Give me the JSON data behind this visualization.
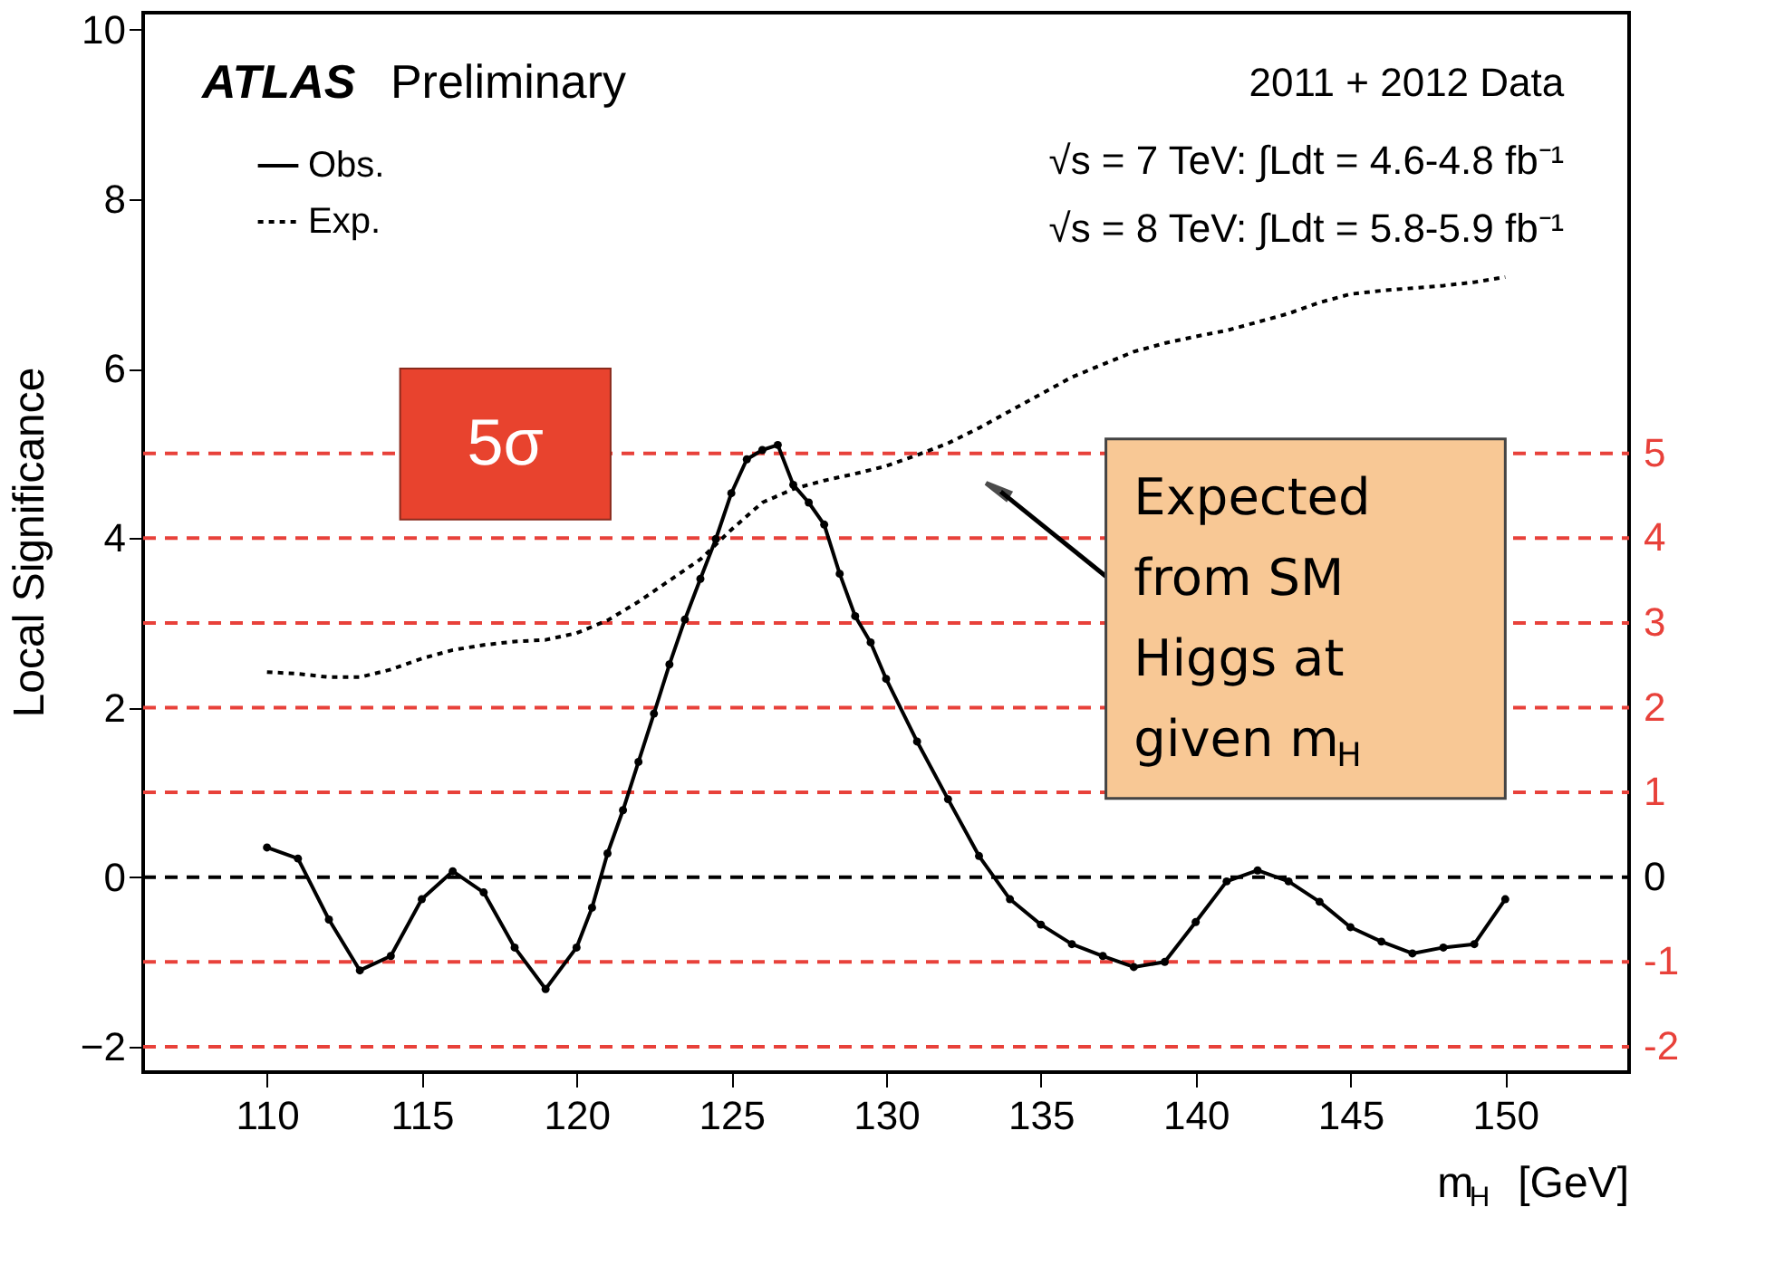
{
  "chart_data": {
    "type": "line",
    "xlabel": "m$_{H}$ [GeV]",
    "ylabel": "Local Significance",
    "xlim": [
      106,
      154
    ],
    "ylim": [
      -2.3,
      10.2
    ],
    "xticks": [
      110,
      115,
      120,
      125,
      130,
      135,
      140,
      145,
      150
    ],
    "yticks": [
      -2,
      0,
      2,
      4,
      6,
      8,
      10
    ],
    "legend": "top left",
    "series": [
      {
        "name": "Obs.",
        "color": "#000000",
        "line_style": "solid",
        "marker": "circle",
        "x": [
          110,
          111,
          112,
          113,
          114,
          115,
          116,
          117,
          118,
          119,
          120,
          120.5,
          121,
          121.5,
          122,
          122.5,
          123,
          123.5,
          124,
          124.5,
          125,
          125.5,
          126,
          126.5,
          127,
          127.5,
          128,
          128.5,
          129,
          129.5,
          130,
          131,
          132,
          133,
          134,
          135,
          136,
          137,
          138,
          139,
          140,
          141,
          142,
          143,
          144,
          145,
          146,
          147,
          148,
          149,
          150
        ],
        "values": [
          0.35,
          0.22,
          -0.5,
          -1.1,
          -0.93,
          -0.26,
          0.07,
          -0.18,
          -0.83,
          -1.32,
          -0.83,
          -0.36,
          0.28,
          0.79,
          1.36,
          1.93,
          2.51,
          3.04,
          3.52,
          3.99,
          4.53,
          4.93,
          5.04,
          5.1,
          4.63,
          4.42,
          4.16,
          3.58,
          3.08,
          2.77,
          2.34,
          1.6,
          0.92,
          0.25,
          -0.26,
          -0.56,
          -0.79,
          -0.93,
          -1.06,
          -1.0,
          -0.53,
          -0.05,
          0.08,
          -0.05,
          -0.29,
          -0.59,
          -0.76,
          -0.9,
          -0.83,
          -0.79,
          -0.26
        ]
      },
      {
        "name": "Exp.",
        "color": "#000000",
        "line_style": "dotted",
        "marker": "none",
        "x": [
          110,
          111,
          112,
          113,
          114,
          115,
          116,
          117,
          118,
          119,
          120,
          121,
          122,
          123,
          124,
          125,
          126,
          127,
          128,
          129,
          130,
          131,
          132,
          133,
          134,
          135,
          136,
          137,
          138,
          139,
          140,
          141,
          142,
          143,
          144,
          145,
          146,
          147,
          148,
          149,
          150
        ],
        "values": [
          2.42,
          2.4,
          2.36,
          2.36,
          2.45,
          2.58,
          2.68,
          2.74,
          2.78,
          2.8,
          2.88,
          3.03,
          3.25,
          3.5,
          3.75,
          4.1,
          4.42,
          4.58,
          4.68,
          4.76,
          4.85,
          4.98,
          5.12,
          5.3,
          5.5,
          5.7,
          5.9,
          6.05,
          6.2,
          6.3,
          6.38,
          6.45,
          6.55,
          6.65,
          6.78,
          6.88,
          6.92,
          6.95,
          6.98,
          7.02,
          7.08
        ]
      }
    ],
    "ref_lines": [
      {
        "axis": "y",
        "value": 5,
        "label": "5",
        "color": "#e8413a",
        "line_style": "dashed"
      },
      {
        "axis": "y",
        "value": 4,
        "label": "4",
        "color": "#e8413a",
        "line_style": "dashed"
      },
      {
        "axis": "y",
        "value": 3,
        "label": "3",
        "color": "#e8413a",
        "line_style": "dashed"
      },
      {
        "axis": "y",
        "value": 2,
        "label": "2",
        "color": "#e8413a",
        "line_style": "dashed"
      },
      {
        "axis": "y",
        "value": 1,
        "label": "1",
        "color": "#e8413a",
        "line_style": "dashed"
      },
      {
        "axis": "y",
        "value": 0,
        "label": "0",
        "color": "#000000",
        "line_style": "dashed"
      },
      {
        "axis": "y",
        "value": -1,
        "label": "-1",
        "color": "#e8413a",
        "line_style": "dashed"
      },
      {
        "axis": "y",
        "value": -2,
        "label": "-2",
        "color": "#e8413a",
        "line_style": "dashed"
      }
    ],
    "annotations": [
      "ATLAS Preliminary",
      "2011 + 2012 Data",
      "√s = 7 TeV: ∫Ldt = 4.6-4.8 fb⁻¹",
      "√s = 8 TeV: ∫Ldt = 5.8-5.9 fb⁻¹",
      "5σ",
      "Expected from SM Higgs at given m$_{H}$"
    ]
  }
}
